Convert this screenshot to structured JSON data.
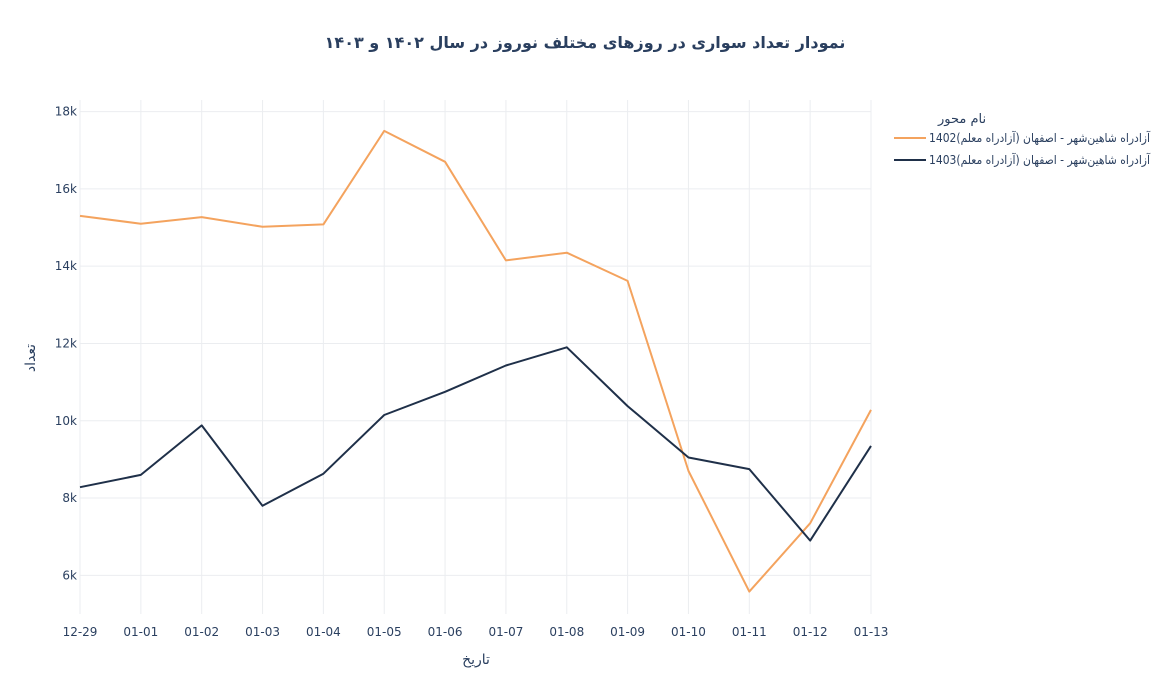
{
  "chart_data": {
    "type": "line",
    "title": "نمودار تعداد سواری در روزهای مختلف نوروز در سال ۱۴۰۲ و ۱۴۰۳",
    "xlabel": "تاریخ",
    "ylabel": "تعداد",
    "legend_title": "نام محور",
    "legend_position": "top-right",
    "grid": true,
    "categories": [
      "12-29",
      "01-01",
      "01-02",
      "01-03",
      "01-04",
      "01-05",
      "01-06",
      "01-07",
      "01-08",
      "01-09",
      "01-10",
      "01-11",
      "01-12",
      "01-13"
    ],
    "ylim": [
      5000,
      18300
    ],
    "yticks": [
      6000,
      8000,
      10000,
      12000,
      14000,
      16000,
      18000
    ],
    "ytick_labels": [
      "6k",
      "8k",
      "10k",
      "12k",
      "14k",
      "16k",
      "18k"
    ],
    "series": [
      {
        "name": "آزادراه شاهین‌شهر - اصفهان (آزادراه معلم)1402",
        "color": "#f4a35e",
        "values": [
          15300,
          15100,
          15270,
          15020,
          15080,
          17500,
          16700,
          14150,
          14350,
          13620,
          8700,
          5580,
          7350,
          10280
        ]
      },
      {
        "name": "آزادراه شاهین‌شهر - اصفهان (آزادراه معلم)1403",
        "color": "#1f3049",
        "values": [
          8280,
          8600,
          9880,
          7800,
          8630,
          10150,
          10750,
          11430,
          11900,
          10380,
          9050,
          8750,
          6900,
          9350
        ]
      }
    ]
  }
}
